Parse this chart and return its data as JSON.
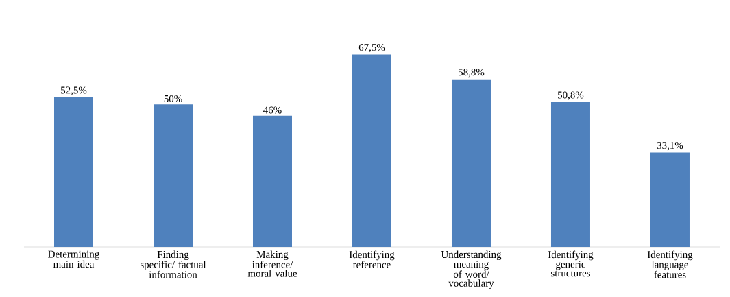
{
  "chart_data": {
    "type": "bar",
    "categories": [
      "Determining main idea",
      "Finding specific/ factual information",
      "Making inference/ moral value",
      "Identifying reference",
      "Understanding meaning of word/ vocabulary",
      "Identifying generic structures",
      "Identifying language features"
    ],
    "values": [
      52.5,
      50,
      46,
      67.5,
      58.8,
      50.8,
      33.1
    ],
    "value_labels": [
      "52,5%",
      "50%",
      "46%",
      "67,5%",
      "58,8%",
      "50,8%",
      "33,1%"
    ],
    "color": "#4f81bd",
    "tick_labels": "x"
  }
}
